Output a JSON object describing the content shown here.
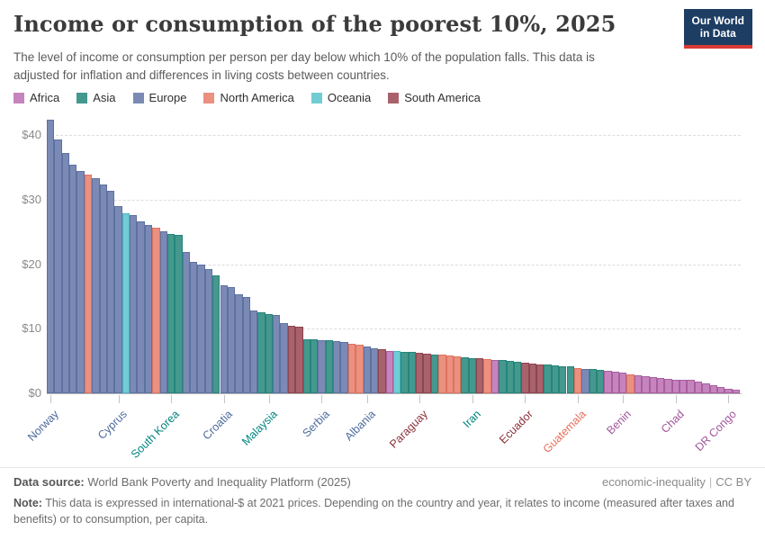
{
  "header": {
    "title": "Income or consumption of the poorest 10%, 2025",
    "subtitle": "The level of income or consumption per person per day below which 10% of the population falls. This data is adjusted for inflation and differences in living costs between countries.",
    "logo_line1": "Our World",
    "logo_line2": "in Data"
  },
  "legend": [
    {
      "label": "Africa",
      "continent": "Africa"
    },
    {
      "label": "Asia",
      "continent": "Asia"
    },
    {
      "label": "Europe",
      "continent": "Europe"
    },
    {
      "label": "North America",
      "continent": "North America"
    },
    {
      "label": "Oceania",
      "continent": "Oceania"
    },
    {
      "label": "South America",
      "continent": "South America"
    }
  ],
  "palette": {
    "Africa": {
      "fill": "#c584bd",
      "edge": "#a85ea0",
      "text": "#a2559c"
    },
    "Asia": {
      "fill": "#44988d",
      "edge": "#26857a",
      "text": "#00847e"
    },
    "Europe": {
      "fill": "#7b8ab5",
      "edge": "#5d71a2",
      "text": "#4c6a9c"
    },
    "North America": {
      "fill": "#ec9080",
      "edge": "#de7260",
      "text": "#e56e5a"
    },
    "Oceania": {
      "fill": "#71ccd3",
      "edge": "#4db4bd",
      "text": "#2d9aa5"
    },
    "South America": {
      "fill": "#a8626b",
      "edge": "#8e4550",
      "text": "#883039"
    }
  },
  "chart_data": {
    "type": "bar",
    "title": "Income or consumption of the poorest 10%, 2025",
    "unit": "$",
    "ylabel": "",
    "xlabel": "",
    "ylim": [
      0,
      43
    ],
    "y_ticks": [
      0,
      10,
      20,
      30,
      40
    ],
    "grid": "horizontal-dashed",
    "legend_position": "top",
    "x_tick_labels": [
      "Norway",
      "Cyprus",
      "South Korea",
      "Croatia",
      "Malaysia",
      "Serbia",
      "Albania",
      "Paraguay",
      "Iran",
      "Ecuador",
      "Guatemala",
      "Benin",
      "Chad",
      "DR Congo"
    ],
    "bars": [
      {
        "v": 42.4,
        "c": "Europe",
        "label": "Norway"
      },
      {
        "v": 39.3,
        "c": "Europe"
      },
      {
        "v": 37.3,
        "c": "Europe"
      },
      {
        "v": 35.4,
        "c": "Europe"
      },
      {
        "v": 34.4,
        "c": "Europe"
      },
      {
        "v": 33.9,
        "c": "North America"
      },
      {
        "v": 33.3,
        "c": "Europe"
      },
      {
        "v": 32.3,
        "c": "Europe"
      },
      {
        "v": 31.4,
        "c": "Europe"
      },
      {
        "v": 29.0,
        "c": "Europe",
        "label": "Cyprus"
      },
      {
        "v": 27.9,
        "c": "Oceania"
      },
      {
        "v": 27.6,
        "c": "Europe"
      },
      {
        "v": 26.6,
        "c": "Europe"
      },
      {
        "v": 26.1,
        "c": "Europe"
      },
      {
        "v": 25.6,
        "c": "North America"
      },
      {
        "v": 25.1,
        "c": "Europe"
      },
      {
        "v": 24.7,
        "c": "Asia",
        "label": "South Korea"
      },
      {
        "v": 24.5,
        "c": "Asia"
      },
      {
        "v": 21.9,
        "c": "Europe"
      },
      {
        "v": 20.3,
        "c": "Europe"
      },
      {
        "v": 19.9,
        "c": "Europe"
      },
      {
        "v": 19.2,
        "c": "Europe"
      },
      {
        "v": 18.3,
        "c": "Asia"
      },
      {
        "v": 16.7,
        "c": "Europe",
        "label": "Croatia"
      },
      {
        "v": 16.4,
        "c": "Europe"
      },
      {
        "v": 15.3,
        "c": "Europe"
      },
      {
        "v": 14.9,
        "c": "Europe"
      },
      {
        "v": 12.8,
        "c": "Europe"
      },
      {
        "v": 12.5,
        "c": "Asia"
      },
      {
        "v": 12.3,
        "c": "Asia",
        "label": "Malaysia"
      },
      {
        "v": 12.1,
        "c": "Europe"
      },
      {
        "v": 10.9,
        "c": "Europe"
      },
      {
        "v": 10.5,
        "c": "South America"
      },
      {
        "v": 10.3,
        "c": "South America"
      },
      {
        "v": 8.4,
        "c": "Asia"
      },
      {
        "v": 8.3,
        "c": "Asia"
      },
      {
        "v": 8.25,
        "c": "Europe",
        "label": "Serbia"
      },
      {
        "v": 8.2,
        "c": "Asia"
      },
      {
        "v": 8.1,
        "c": "Europe"
      },
      {
        "v": 8.0,
        "c": "Europe"
      },
      {
        "v": 7.7,
        "c": "North America"
      },
      {
        "v": 7.5,
        "c": "North America"
      },
      {
        "v": 7.2,
        "c": "Europe",
        "label": "Albania"
      },
      {
        "v": 7.0,
        "c": "Europe"
      },
      {
        "v": 6.8,
        "c": "South America"
      },
      {
        "v": 6.6,
        "c": "Africa"
      },
      {
        "v": 6.5,
        "c": "Oceania"
      },
      {
        "v": 6.45,
        "c": "Asia"
      },
      {
        "v": 6.35,
        "c": "Asia"
      },
      {
        "v": 6.25,
        "c": "South America",
        "label": "Paraguay"
      },
      {
        "v": 6.15,
        "c": "South America"
      },
      {
        "v": 6.05,
        "c": "Asia"
      },
      {
        "v": 5.95,
        "c": "North America"
      },
      {
        "v": 5.85,
        "c": "North America"
      },
      {
        "v": 5.75,
        "c": "North America"
      },
      {
        "v": 5.6,
        "c": "Asia"
      },
      {
        "v": 5.5,
        "c": "Asia",
        "label": "Iran"
      },
      {
        "v": 5.4,
        "c": "South America"
      },
      {
        "v": 5.3,
        "c": "North America"
      },
      {
        "v": 5.2,
        "c": "Africa"
      },
      {
        "v": 5.1,
        "c": "Asia"
      },
      {
        "v": 5.0,
        "c": "Asia"
      },
      {
        "v": 4.9,
        "c": "Asia"
      },
      {
        "v": 4.75,
        "c": "South America",
        "label": "Ecuador"
      },
      {
        "v": 4.6,
        "c": "South America"
      },
      {
        "v": 4.5,
        "c": "South America"
      },
      {
        "v": 4.4,
        "c": "Asia"
      },
      {
        "v": 4.3,
        "c": "Asia"
      },
      {
        "v": 4.25,
        "c": "Asia"
      },
      {
        "v": 4.15,
        "c": "Asia"
      },
      {
        "v": 3.9,
        "c": "North America",
        "label": "Guatemala"
      },
      {
        "v": 3.8,
        "c": "Europe"
      },
      {
        "v": 3.7,
        "c": "Asia"
      },
      {
        "v": 3.6,
        "c": "Asia"
      },
      {
        "v": 3.45,
        "c": "Africa"
      },
      {
        "v": 3.3,
        "c": "Africa"
      },
      {
        "v": 3.15,
        "c": "Africa",
        "label": "Benin"
      },
      {
        "v": 2.95,
        "c": "North America"
      },
      {
        "v": 2.8,
        "c": "Africa"
      },
      {
        "v": 2.6,
        "c": "Africa"
      },
      {
        "v": 2.45,
        "c": "Africa"
      },
      {
        "v": 2.35,
        "c": "Africa"
      },
      {
        "v": 2.25,
        "c": "Africa"
      },
      {
        "v": 2.15,
        "c": "Africa",
        "label": "Chad"
      },
      {
        "v": 2.1,
        "c": "Africa"
      },
      {
        "v": 2.05,
        "c": "Africa"
      },
      {
        "v": 1.8,
        "c": "Africa"
      },
      {
        "v": 1.5,
        "c": "Africa"
      },
      {
        "v": 1.2,
        "c": "Africa"
      },
      {
        "v": 0.95,
        "c": "Africa"
      },
      {
        "v": 0.7,
        "c": "Africa",
        "label": "DR Congo"
      },
      {
        "v": 0.5,
        "c": "Africa"
      }
    ]
  },
  "footer": {
    "data_source_label": "Data source:",
    "data_source_text": "World Bank Poverty and Inequality Platform (2025)",
    "link_topic": "economic-inequality",
    "link_separator": "|",
    "link_license": "CC BY",
    "note_label": "Note:",
    "note_text": "This data is expressed in international-$ at 2021 prices. Depending on the country and year, it relates to income (measured after taxes and benefits) or to consumption, per capita."
  }
}
